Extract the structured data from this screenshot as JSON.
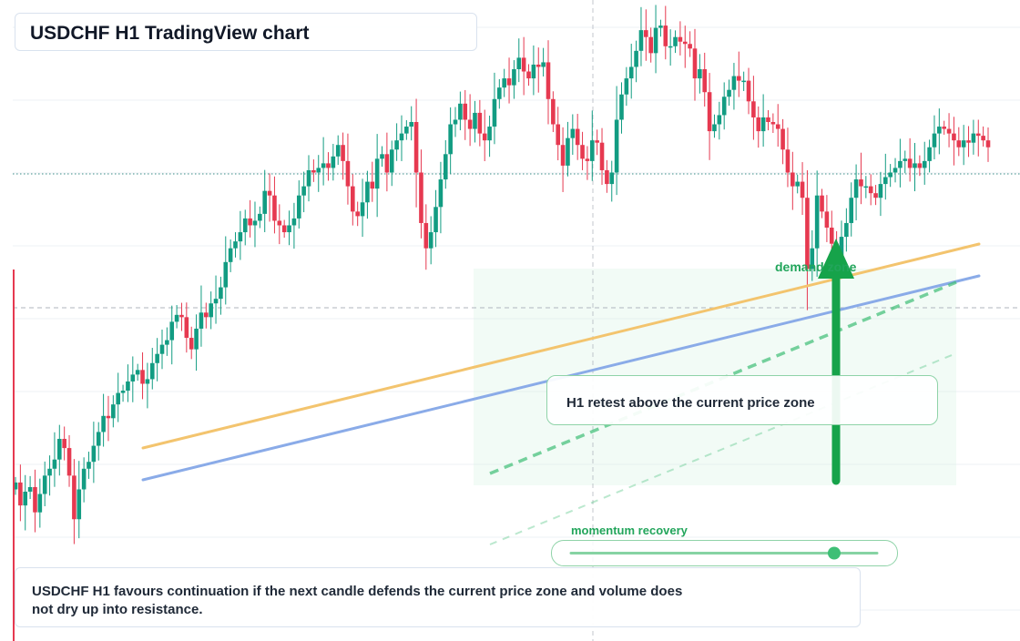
{
  "title": "USDCHF H1 TradingView chart",
  "labels": {
    "retest": "H1 retest above the current price zone",
    "demand": "demand zone",
    "momentum": "momentum recovery"
  },
  "note": "USDCHF H1 favours continuation if the next candle defends the current price zone and volume does not dry up into resistance.",
  "colors": {
    "up": "#129c82",
    "down": "#e63950",
    "accent": "#22a55b",
    "trend_orange": "#f3c46e",
    "trend_blue": "#8aabe8"
  },
  "momentum_level": 0.86,
  "chart_data": {
    "type": "candlestick",
    "symbol": "USDCHF",
    "timeframe": "H1",
    "closes": [
      0.47,
      0.37,
      0.43,
      0.45,
      0.34,
      0.42,
      0.5,
      0.53,
      0.57,
      0.66,
      0.62,
      0.5,
      0.31,
      0.44,
      0.53,
      0.56,
      0.63,
      0.69,
      0.76,
      0.75,
      0.81,
      0.86,
      0.87,
      0.91,
      0.94,
      0.96,
      0.9,
      0.92,
      0.99,
      1.03,
      1.07,
      1.09,
      1.17,
      1.2,
      1.19,
      1.1,
      1.05,
      1.14,
      1.21,
      1.19,
      1.25,
      1.27,
      1.32,
      1.43,
      1.49,
      1.52,
      1.56,
      1.62,
      1.59,
      1.61,
      1.64,
      1.74,
      1.72,
      1.61,
      1.59,
      1.56,
      1.59,
      1.62,
      1.72,
      1.76,
      1.83,
      1.82,
      1.84,
      1.86,
      1.84,
      1.89,
      1.94,
      1.87,
      1.76,
      1.65,
      1.63,
      1.69,
      1.78,
      1.75,
      1.88,
      1.9,
      1.82,
      1.92,
      1.96,
      1.99,
      2.02,
      2.04,
      1.82,
      1.6,
      1.49,
      1.56,
      1.67,
      1.79,
      1.9,
      2.03,
      2.05,
      2.12,
      2.05,
      2.01,
      2.08,
      1.99,
      1.96,
      2.02,
      2.14,
      2.19,
      2.23,
      2.2,
      2.27,
      2.32,
      2.26,
      2.23,
      2.29,
      2.28,
      2.3,
      2.14,
      2.03,
      1.94,
      1.85,
      1.97,
      2.01,
      1.94,
      1.88,
      1.87,
      1.96,
      1.95,
      1.83,
      1.77,
      1.82,
      2.05,
      2.16,
      2.23,
      2.28,
      2.35,
      2.44,
      2.41,
      2.34,
      2.45,
      2.46,
      2.37,
      2.37,
      2.41,
      2.39,
      2.38,
      2.36,
      2.23,
      2.27,
      2.17,
      2.0,
      2.03,
      2.07,
      2.15,
      2.18,
      2.24,
      2.22,
      2.22,
      2.13,
      2.06,
      2.0,
      2.06,
      2.04,
      2.03,
      2.01,
      1.92,
      1.82,
      1.76,
      1.78,
      1.71,
      1.4,
      1.49,
      1.72,
      1.65,
      1.58,
      1.51,
      1.46,
      1.54,
      1.6,
      1.71,
      1.79,
      1.76,
      1.76,
      1.73,
      1.71,
      1.77,
      1.8,
      1.82,
      1.84,
      1.87,
      1.88,
      1.84,
      1.86,
      1.84,
      1.87,
      1.93,
      1.99,
      2.02,
      2.01,
      1.99,
      1.96,
      1.93,
      1.96,
      1.95,
      1.99,
      1.98,
      1.96,
      1.93
    ]
  }
}
